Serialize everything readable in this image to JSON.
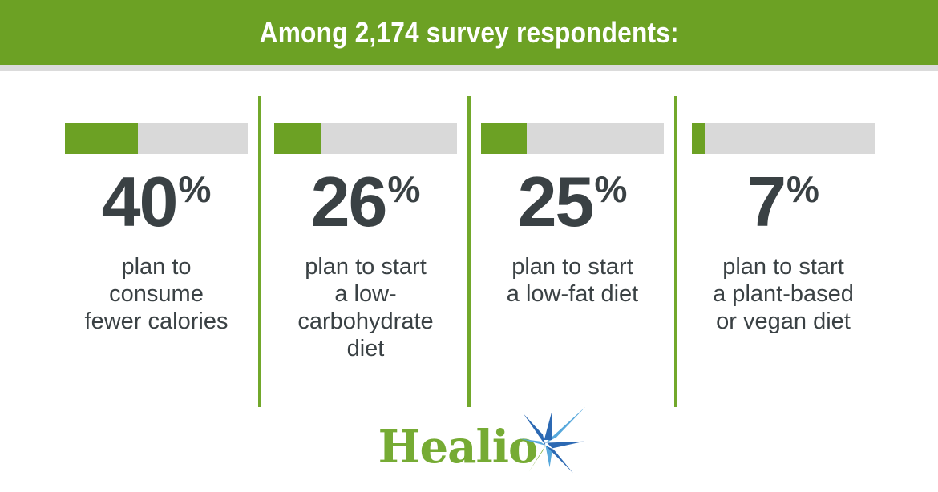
{
  "header": {
    "title": "Among 2,174 survey respondents:",
    "bg_color": "#6CA124",
    "text_color": "#FFFFFF"
  },
  "chart_data": {
    "type": "bar",
    "orientation": "horizontal-progress",
    "title": "Among 2,174 survey respondents:",
    "categories": [
      "plan to consume fewer calories",
      "plan to start a low-carbohydrate diet",
      "plan to start a low-fat diet",
      "plan to start a plant-based or vegan diet"
    ],
    "values": [
      40,
      26,
      25,
      7
    ],
    "unit": "%",
    "value_range": [
      0,
      100
    ],
    "bar_fill_color": "#6CA124",
    "bar_track_color": "#D9D9D9",
    "value_text_color": "#3A4144",
    "divider_color": "#72A82B",
    "legend": "none",
    "grid": false
  },
  "columns": [
    {
      "value": 40,
      "value_text": "40",
      "percent_sign": "%",
      "description": "plan to\nconsume\nfewer calories"
    },
    {
      "value": 26,
      "value_text": "26",
      "percent_sign": "%",
      "description": "plan to start\na low-\ncarbohydrate\ndiet"
    },
    {
      "value": 25,
      "value_text": "25",
      "percent_sign": "%",
      "description": "plan to start\na low-fat diet"
    },
    {
      "value": 7,
      "value_text": "7",
      "percent_sign": "%",
      "description": "plan to start\na plant-based\nor vegan diet"
    }
  ],
  "footer": {
    "logo_text": "Healio",
    "logo_color": "#76AB34",
    "star_blue_dark": "#2C69B3",
    "star_blue_light": "#57A8DC",
    "star_green": "#76AB34"
  }
}
